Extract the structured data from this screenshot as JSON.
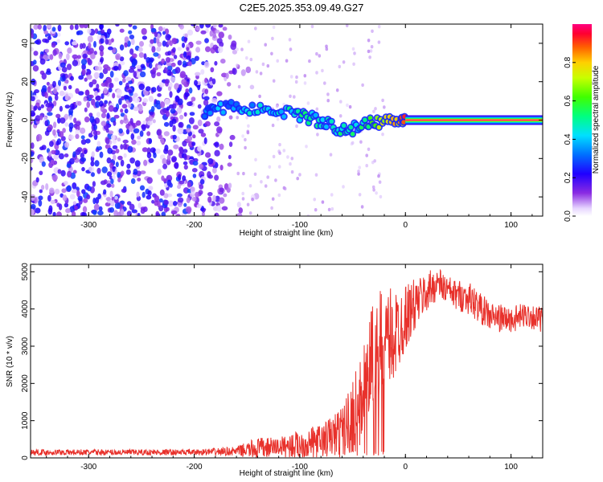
{
  "figure_title": "C2E5.2025.353.09.49.G27",
  "chart_data": [
    {
      "type": "heatmap",
      "title": "C2E5.2025.353.09.49.G27",
      "xlabel": "Height of straight line (km)",
      "ylabel": "Frequency (Hz)",
      "xlim": [
        -355,
        130
      ],
      "ylim": [
        -50,
        50
      ],
      "xticks": [
        -300,
        -200,
        -100,
        0,
        100
      ],
      "yticks": [
        -40,
        -20,
        0,
        20,
        40
      ],
      "grid": false,
      "colorbar": {
        "label": "Normalized spectral amplitude",
        "range": [
          0,
          1
        ],
        "ticks": [
          "0.0",
          "0.2",
          "0.4",
          "0.6",
          "0.8"
        ],
        "tick_values": [
          0.0,
          0.2,
          0.4,
          0.6,
          0.8
        ]
      },
      "ridge_trace": [
        {
          "x": -190,
          "y": 4,
          "a": 0.3
        },
        {
          "x": -180,
          "y": 6,
          "a": 0.35
        },
        {
          "x": -165,
          "y": 7,
          "a": 0.35
        },
        {
          "x": -150,
          "y": 6,
          "a": 0.4
        },
        {
          "x": -135,
          "y": 5,
          "a": 0.4
        },
        {
          "x": -120,
          "y": 5,
          "a": 0.45
        },
        {
          "x": -105,
          "y": 4,
          "a": 0.45
        },
        {
          "x": -95,
          "y": 2,
          "a": 0.5
        },
        {
          "x": -85,
          "y": 0,
          "a": 0.45
        },
        {
          "x": -75,
          "y": -2,
          "a": 0.45
        },
        {
          "x": -65,
          "y": -4,
          "a": 0.5
        },
        {
          "x": -55,
          "y": -5,
          "a": 0.5
        },
        {
          "x": -45,
          "y": -4,
          "a": 0.45
        },
        {
          "x": -35,
          "y": -2,
          "a": 0.6
        },
        {
          "x": -25,
          "y": -1,
          "a": 0.7
        },
        {
          "x": -15,
          "y": 0,
          "a": 0.75
        },
        {
          "x": -5,
          "y": 1,
          "a": 0.8
        },
        {
          "x": 0,
          "y": 1,
          "a": 0.9
        }
      ],
      "constant_band": {
        "x_start": 0,
        "x_end": 130,
        "y": 0,
        "a": 1.0
      },
      "noise_region": {
        "x_start": -355,
        "x_end": -160,
        "y_range": [
          -50,
          50
        ],
        "a_max": 0.25
      }
    },
    {
      "type": "line",
      "title": "",
      "xlabel": "Height of straight line (km)",
      "ylabel": "SNR (10 * v/v)",
      "xlim": [
        -355,
        130
      ],
      "ylim": [
        0,
        5200
      ],
      "xticks": [
        -300,
        -200,
        -100,
        0,
        100
      ],
      "yticks": [
        0,
        1000,
        2000,
        3000,
        4000,
        5000
      ],
      "grid": false,
      "color": "#e8312b",
      "series": [
        {
          "name": "SNR",
          "envelope": [
            {
              "x": -355,
              "base": 150,
              "amp": 80
            },
            {
              "x": -200,
              "base": 150,
              "amp": 80
            },
            {
              "x": -160,
              "base": 180,
              "amp": 120
            },
            {
              "x": -140,
              "base": 250,
              "amp": 300
            },
            {
              "x": -120,
              "base": 300,
              "amp": 250
            },
            {
              "x": -100,
              "base": 350,
              "amp": 400
            },
            {
              "x": -80,
              "base": 450,
              "amp": 450
            },
            {
              "x": -60,
              "base": 700,
              "amp": 700
            },
            {
              "x": -45,
              "base": 1300,
              "amp": 1200
            },
            {
              "x": -35,
              "base": 2300,
              "amp": 1500
            },
            {
              "x": -25,
              "base": 3000,
              "amp": 1500
            },
            {
              "x": -10,
              "base": 3300,
              "amp": 1300
            },
            {
              "x": 0,
              "base": 3800,
              "amp": 900
            },
            {
              "x": 15,
              "base": 4300,
              "amp": 600
            },
            {
              "x": 30,
              "base": 4700,
              "amp": 450
            },
            {
              "x": 45,
              "base": 4400,
              "amp": 400
            },
            {
              "x": 60,
              "base": 4300,
              "amp": 450
            },
            {
              "x": 80,
              "base": 3800,
              "amp": 400
            },
            {
              "x": 100,
              "base": 3700,
              "amp": 350
            },
            {
              "x": 115,
              "base": 3850,
              "amp": 350
            },
            {
              "x": 130,
              "base": 3700,
              "amp": 350
            }
          ]
        }
      ]
    }
  ]
}
